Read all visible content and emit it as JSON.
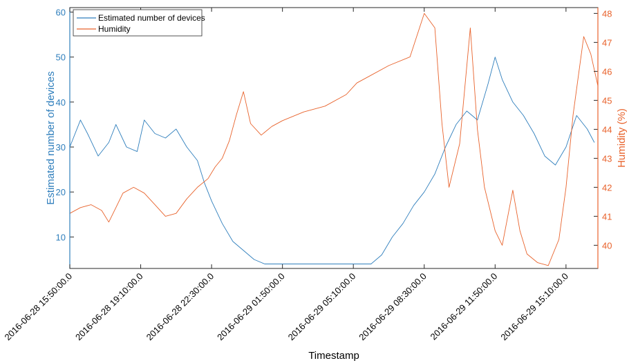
{
  "chart_data": {
    "type": "line",
    "xlabel": "Timestamp",
    "x_ticks": [
      "2016-06-28 15:50:00.0",
      "2016-06-28 19:10:00.0",
      "2016-06-28 22:30:00.0",
      "2016-06-29 01:50:00.0",
      "2016-06-29 05:10:00.0",
      "2016-06-29 08:30:00.0",
      "2016-06-29 11:50:00.0",
      "2016-06-29 15:10:00.0"
    ],
    "xlim": [
      "2016-06-28 15:50:00",
      "2016-06-29 16:40:00"
    ],
    "y_left": {
      "label": "Estimated number of devices",
      "ylim": [
        3,
        61
      ],
      "ticks": [
        10,
        20,
        30,
        40,
        50,
        60
      ],
      "color": "#2E7EBC"
    },
    "y_right": {
      "label": "Humidity (%)",
      "ylim": [
        39.2,
        48.2
      ],
      "ticks": [
        40,
        41,
        42,
        43,
        44,
        45,
        46,
        47,
        48
      ],
      "color": "#E8622B"
    },
    "legend": {
      "position": "top-left",
      "entries": [
        "Estimated number of devices",
        "Humidity"
      ]
    },
    "grid": false,
    "series": [
      {
        "name": "Estimated number of devices",
        "axis": "left",
        "color": "#2E7EBC",
        "x": [
          "2016-06-28 15:50:00",
          "2016-06-28 16:20:00",
          "2016-06-28 16:40:00",
          "2016-06-28 17:10:00",
          "2016-06-28 17:40:00",
          "2016-06-28 18:00:00",
          "2016-06-28 18:30:00",
          "2016-06-28 19:00:00",
          "2016-06-28 19:20:00",
          "2016-06-28 19:50:00",
          "2016-06-28 20:20:00",
          "2016-06-28 20:50:00",
          "2016-06-28 21:20:00",
          "2016-06-28 21:50:00",
          "2016-06-28 22:10:00",
          "2016-06-28 22:30:00",
          "2016-06-28 23:00:00",
          "2016-06-28 23:30:00",
          "2016-06-29 00:00:00",
          "2016-06-29 00:30:00",
          "2016-06-29 01:00:00",
          "2016-06-29 01:30:00",
          "2016-06-29 02:00:00",
          "2016-06-29 03:00:00",
          "2016-06-29 04:00:00",
          "2016-06-29 05:00:00",
          "2016-06-29 05:30:00",
          "2016-06-29 06:00:00",
          "2016-06-29 06:30:00",
          "2016-06-29 07:00:00",
          "2016-06-29 07:30:00",
          "2016-06-29 08:00:00",
          "2016-06-29 08:30:00",
          "2016-06-29 09:00:00",
          "2016-06-29 09:30:00",
          "2016-06-29 10:00:00",
          "2016-06-29 10:30:00",
          "2016-06-29 11:00:00",
          "2016-06-29 11:30:00",
          "2016-06-29 11:50:00",
          "2016-06-29 12:10:00",
          "2016-06-29 12:40:00",
          "2016-06-29 13:10:00",
          "2016-06-29 13:40:00",
          "2016-06-29 14:10:00",
          "2016-06-29 14:40:00",
          "2016-06-29 15:10:00",
          "2016-06-29 15:40:00",
          "2016-06-29 16:10:00",
          "2016-06-29 16:30:00"
        ],
        "y": [
          30,
          36,
          33,
          28,
          31,
          35,
          30,
          29,
          36,
          33,
          32,
          34,
          30,
          27,
          22,
          18,
          13,
          9,
          7,
          5,
          4,
          4,
          4,
          4,
          4,
          4,
          4,
          4,
          6,
          10,
          13,
          17,
          20,
          24,
          30,
          35,
          38,
          36,
          44,
          50,
          45,
          40,
          37,
          33,
          28,
          26,
          30,
          37,
          34,
          31
        ]
      },
      {
        "name": "Humidity",
        "axis": "right",
        "color": "#E8622B",
        "x": [
          "2016-06-28 15:50:00",
          "2016-06-28 16:20:00",
          "2016-06-28 16:50:00",
          "2016-06-28 17:20:00",
          "2016-06-28 17:40:00",
          "2016-06-28 18:00:00",
          "2016-06-28 18:20:00",
          "2016-06-28 18:50:00",
          "2016-06-28 19:20:00",
          "2016-06-28 19:50:00",
          "2016-06-28 20:20:00",
          "2016-06-28 20:50:00",
          "2016-06-28 21:20:00",
          "2016-06-28 21:50:00",
          "2016-06-28 22:20:00",
          "2016-06-28 22:40:00",
          "2016-06-28 23:00:00",
          "2016-06-28 23:20:00",
          "2016-06-28 23:40:00",
          "2016-06-29 00:00:00",
          "2016-06-29 00:20:00",
          "2016-06-29 00:50:00",
          "2016-06-29 01:20:00",
          "2016-06-29 01:50:00",
          "2016-06-29 02:50:00",
          "2016-06-29 03:50:00",
          "2016-06-29 04:50:00",
          "2016-06-29 05:20:00",
          "2016-06-29 05:50:00",
          "2016-06-29 06:50:00",
          "2016-06-29 07:50:00",
          "2016-06-29 08:30:00",
          "2016-06-29 09:00:00",
          "2016-06-29 09:20:00",
          "2016-06-29 09:40:00",
          "2016-06-29 10:10:00",
          "2016-06-29 10:40:00",
          "2016-06-29 11:00:00",
          "2016-06-29 11:20:00",
          "2016-06-29 11:50:00",
          "2016-06-29 12:10:00",
          "2016-06-29 12:40:00",
          "2016-06-29 13:00:00",
          "2016-06-29 13:20:00",
          "2016-06-29 13:50:00",
          "2016-06-29 14:20:00",
          "2016-06-29 14:50:00",
          "2016-06-29 15:10:00",
          "2016-06-29 15:30:00",
          "2016-06-29 16:00:00",
          "2016-06-29 16:20:00",
          "2016-06-29 16:40:00"
        ],
        "y": [
          41.1,
          41.3,
          41.4,
          41.2,
          40.8,
          41.3,
          41.8,
          42.0,
          41.8,
          41.4,
          41.0,
          41.1,
          41.6,
          42.0,
          42.3,
          42.7,
          43.0,
          43.6,
          44.5,
          45.3,
          44.2,
          43.8,
          44.1,
          44.3,
          44.6,
          44.8,
          45.2,
          45.6,
          45.8,
          46.2,
          46.5,
          48.0,
          47.5,
          44.2,
          42.0,
          43.5,
          47.5,
          44.0,
          42.0,
          40.5,
          40.0,
          41.9,
          40.5,
          39.7,
          39.4,
          39.3,
          40.2,
          42.0,
          44.5,
          47.2,
          46.6,
          45.5
        ]
      }
    ]
  }
}
